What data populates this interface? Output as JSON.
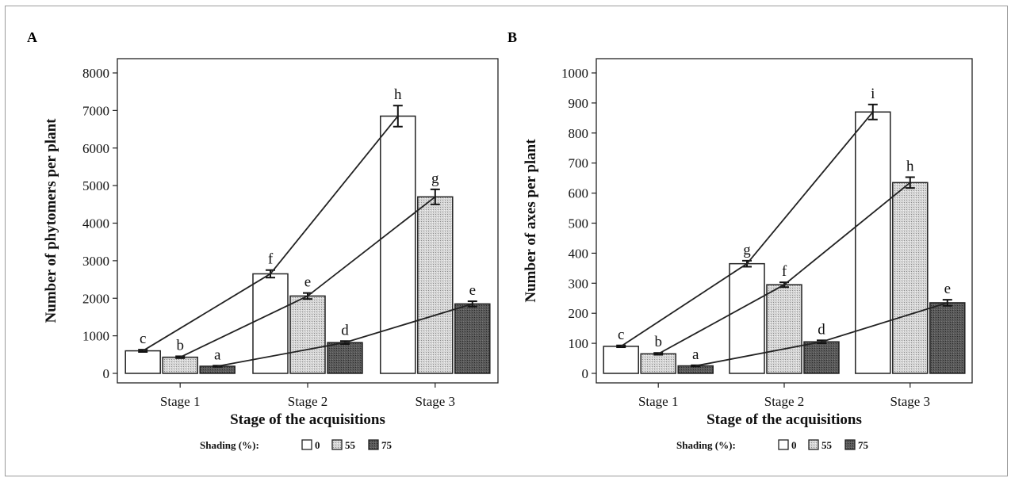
{
  "chart_data": [
    {
      "type": "bar",
      "panel": "A",
      "categories": [
        "Stage 1",
        "Stage 2",
        "Stage 3"
      ],
      "series": [
        {
          "name": "0",
          "values": [
            600,
            2650,
            6850
          ],
          "errors": [
            30,
            100,
            280
          ],
          "letters": [
            "c",
            "f",
            "h"
          ],
          "color": "#ffffff"
        },
        {
          "name": "55",
          "values": [
            430,
            2060,
            4700
          ],
          "errors": [
            25,
            80,
            200
          ],
          "letters": [
            "b",
            "e",
            "g"
          ],
          "color": "#d0d0d0"
        },
        {
          "name": "75",
          "values": [
            190,
            820,
            1850
          ],
          "errors": [
            15,
            40,
            70
          ],
          "letters": [
            "a",
            "d",
            "e"
          ],
          "color": "#555555"
        }
      ],
      "xlabel": "Stage of the acquisitions",
      "ylabel": "Number of phytomers per plant",
      "ylim": [
        0,
        8000
      ],
      "yticks": [
        0,
        1000,
        2000,
        3000,
        4000,
        5000,
        6000,
        7000,
        8000
      ],
      "grid": false,
      "legend_position": "bottom"
    },
    {
      "type": "bar",
      "panel": "B",
      "categories": [
        "Stage 1",
        "Stage 2",
        "Stage 3"
      ],
      "series": [
        {
          "name": "0",
          "values": [
            90,
            365,
            870
          ],
          "errors": [
            3,
            10,
            25
          ],
          "letters": [
            "c",
            "g",
            "i"
          ],
          "color": "#ffffff"
        },
        {
          "name": "55",
          "values": [
            65,
            295,
            635
          ],
          "errors": [
            3,
            8,
            18
          ],
          "letters": [
            "b",
            "f",
            "h"
          ],
          "color": "#d0d0d0"
        },
        {
          "name": "75",
          "values": [
            25,
            105,
            235
          ],
          "errors": [
            2,
            5,
            10
          ],
          "letters": [
            "a",
            "d",
            "e"
          ],
          "color": "#555555"
        }
      ],
      "xlabel": "Stage of the acquisitions",
      "ylabel": "Number of axes per plant",
      "ylim": [
        0,
        1000
      ],
      "yticks": [
        0,
        100,
        200,
        300,
        400,
        500,
        600,
        700,
        800,
        900,
        1000
      ],
      "grid": false,
      "legend_position": "bottom"
    }
  ],
  "legend": {
    "title": "Shading (%):",
    "entries": [
      "0",
      "55",
      "75"
    ]
  }
}
